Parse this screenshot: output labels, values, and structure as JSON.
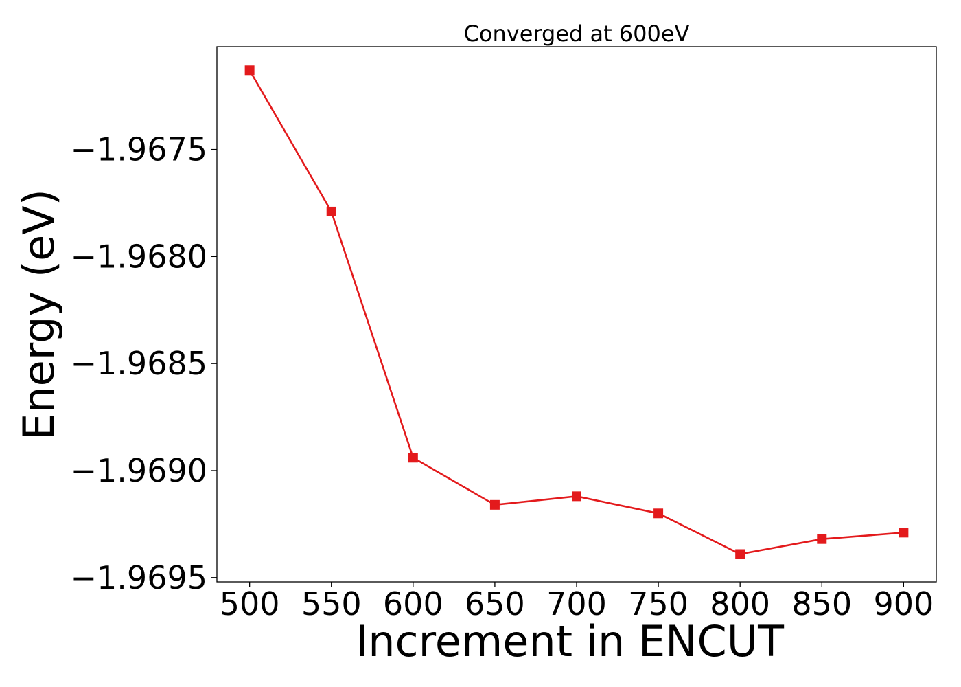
{
  "chart_data": {
    "type": "line",
    "title": "Converged at 600eV",
    "xlabel": "Increment in ENCUT",
    "ylabel": "Energy (eV)",
    "x": [
      500,
      550,
      600,
      650,
      700,
      750,
      800,
      850,
      900
    ],
    "xticks": [
      500,
      550,
      600,
      650,
      700,
      750,
      800,
      850,
      900
    ],
    "xtick_labels": [
      "500",
      "550",
      "600",
      "650",
      "700",
      "750",
      "800",
      "850",
      "900"
    ],
    "yticks": [
      -1.9675,
      -1.968,
      -1.9685,
      -1.969,
      -1.9695
    ],
    "ytick_labels": [
      "−1.9675",
      "−1.9680",
      "−1.9685",
      "−1.9690",
      "−1.9695"
    ],
    "xlim": [
      480,
      920
    ],
    "ylim": [
      -1.96952,
      -1.96702
    ],
    "grid": false,
    "series": [
      {
        "values": [
          -1.96713,
          -1.96779,
          -1.96894,
          -1.96916,
          -1.96912,
          -1.9692,
          -1.96939,
          -1.96932,
          -1.96929
        ],
        "color": "#e31a1c",
        "marker": "square"
      }
    ]
  }
}
